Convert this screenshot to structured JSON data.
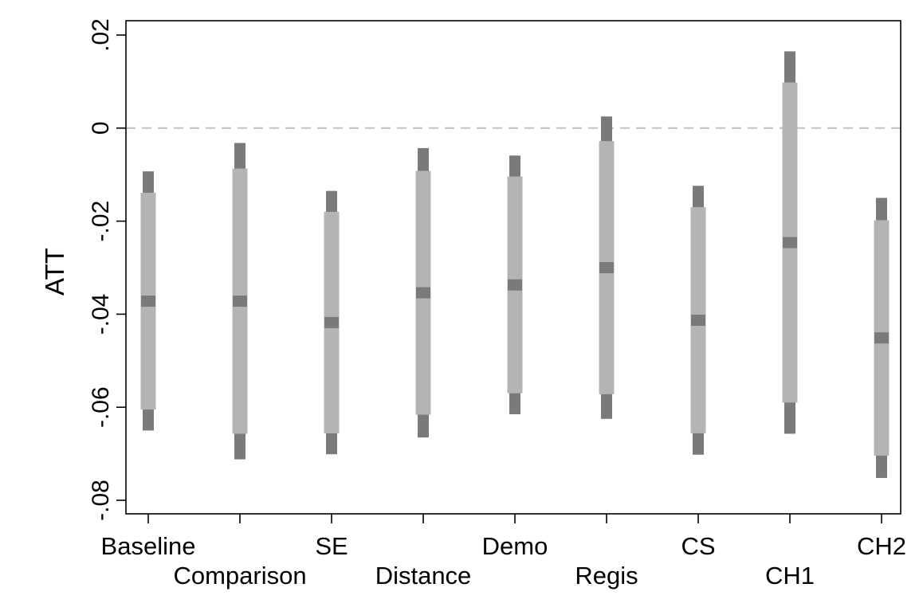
{
  "chart_data": {
    "type": "coefficient-interval",
    "title": "",
    "xlabel": "",
    "ylabel": "ATT",
    "ylim": [
      -0.082,
      0.0245
    ],
    "yticks": [
      {
        "value": 0.02,
        "label": ".02"
      },
      {
        "value": 0,
        "label": "0"
      },
      {
        "value": -0.02,
        "label": "-.02"
      },
      {
        "value": -0.04,
        "label": "-.04"
      },
      {
        "value": -0.06,
        "label": "-.06"
      },
      {
        "value": -0.08,
        "label": "-.08"
      }
    ],
    "reference_line": {
      "y": 0,
      "style": "dashed",
      "color": "#c0c0c0"
    },
    "grid": false,
    "legend": "none",
    "colors": {
      "outer_interval": "#7a7a7a",
      "inner_interval": "#b4b4b4",
      "point_estimate": "#7a7a7a"
    },
    "categories": [
      "Baseline",
      "Comparison",
      "SE",
      "Distance",
      "Demo",
      "Regis",
      "CS",
      "CH1",
      "CH2"
    ],
    "estimates": [
      {
        "label": "Baseline",
        "estimate": -0.0372,
        "inner": [
          -0.0605,
          -0.0139
        ],
        "outer": [
          -0.065,
          -0.0093
        ]
      },
      {
        "label": "Comparison",
        "estimate": -0.0372,
        "inner": [
          -0.0657,
          -0.0087
        ],
        "outer": [
          -0.0712,
          -0.0032
        ]
      },
      {
        "label": "SE",
        "estimate": -0.0418,
        "inner": [
          -0.0656,
          -0.018
        ],
        "outer": [
          -0.0701,
          -0.0135
        ]
      },
      {
        "label": "Distance",
        "estimate": -0.0354,
        "inner": [
          -0.0616,
          -0.0092
        ],
        "outer": [
          -0.0665,
          -0.0043
        ]
      },
      {
        "label": "Demo",
        "estimate": -0.0337,
        "inner": [
          -0.057,
          -0.0104
        ],
        "outer": [
          -0.0615,
          -0.0059
        ]
      },
      {
        "label": "Regis",
        "estimate": -0.03,
        "inner": [
          -0.0572,
          -0.0028
        ],
        "outer": [
          -0.0625,
          0.0025
        ]
      },
      {
        "label": "CS",
        "estimate": -0.0413,
        "inner": [
          -0.0656,
          -0.017
        ],
        "outer": [
          -0.0702,
          -0.0124
        ]
      },
      {
        "label": "CH1",
        "estimate": -0.0246,
        "inner": [
          -0.059,
          0.0098
        ],
        "outer": [
          -0.0657,
          0.0165
        ]
      },
      {
        "label": "CH2",
        "estimate": -0.0451,
        "inner": [
          -0.0704,
          -0.0198
        ],
        "outer": [
          -0.0752,
          -0.015
        ]
      }
    ]
  }
}
